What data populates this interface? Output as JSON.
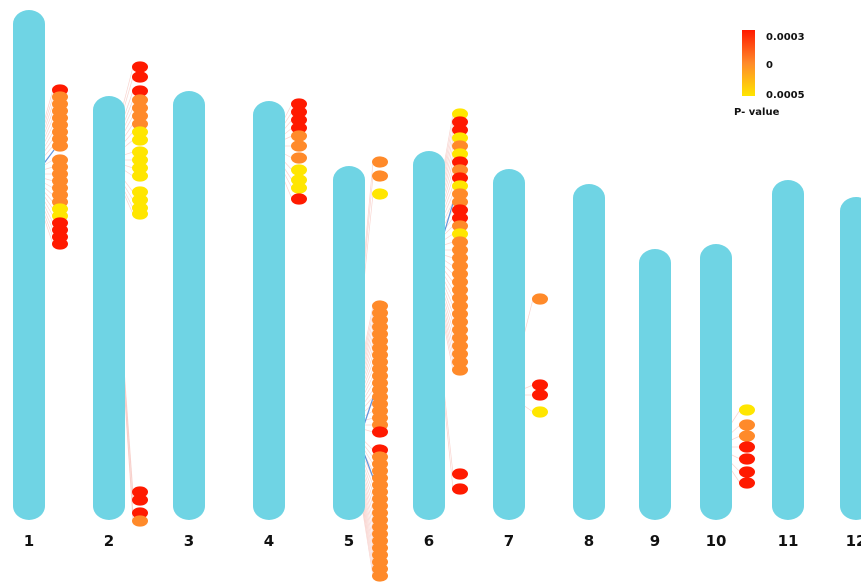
{
  "chart_data": {
    "type": "scatter",
    "title": "",
    "xlabel": "",
    "ylabel": "",
    "chromosome_color": "#6fd4e4",
    "chromosomes": [
      {
        "label": "1",
        "top": 10,
        "bottom": 520
      },
      {
        "label": "2",
        "top": 96,
        "bottom": 520
      },
      {
        "label": "3",
        "top": 91,
        "bottom": 520
      },
      {
        "label": "4",
        "top": 101,
        "bottom": 520
      },
      {
        "label": "5",
        "top": 166,
        "bottom": 520
      },
      {
        "label": "6",
        "top": 151,
        "bottom": 520
      },
      {
        "label": "7",
        "top": 169,
        "bottom": 520
      },
      {
        "label": "8",
        "top": 184,
        "bottom": 520
      },
      {
        "label": "9",
        "top": 249,
        "bottom": 520
      },
      {
        "label": "10",
        "top": 244,
        "bottom": 520
      },
      {
        "label": "11",
        "top": 180,
        "bottom": 520
      },
      {
        "label": "12",
        "top": 197,
        "bottom": 520
      }
    ],
    "p_value_scale": {
      "title": "P- value",
      "tick_labels": [
        "0.0003",
        "0",
        "0.0005"
      ],
      "color_high": "#ff1a00",
      "color_mid": "#ff8a2a",
      "color_low": "#ffe600"
    },
    "markers": [
      {
        "chromosome": "1",
        "positions": [
          90,
          97,
          104,
          111,
          118,
          125,
          132,
          139,
          146,
          160,
          167,
          174,
          181,
          188,
          195,
          202,
          209,
          216,
          223,
          230,
          237,
          244
        ],
        "colors": [
          "red",
          "orange",
          "orange",
          "orange",
          "orange",
          "orange",
          "orange",
          "orange",
          "orange",
          "orange",
          "orange",
          "orange",
          "orange",
          "orange",
          "orange",
          "orange",
          "yellow",
          "yellow",
          "red",
          "red",
          "red",
          "red"
        ]
      },
      {
        "chromosome": "2",
        "positions": [
          67,
          77,
          91,
          100,
          108,
          116,
          124,
          132,
          140,
          152,
          160,
          168,
          176,
          192,
          200,
          208,
          214,
          492,
          500,
          513,
          521
        ],
        "colors": [
          "red",
          "red",
          "red",
          "orange",
          "orange",
          "orange",
          "orange",
          "yellow",
          "yellow",
          "yellow",
          "yellow",
          "yellow",
          "yellow",
          "yellow",
          "yellow",
          "yellow",
          "yellow",
          "red",
          "red",
          "red",
          "orange"
        ]
      },
      {
        "chromosome": "4",
        "positions": [
          104,
          112,
          120,
          128,
          136,
          146,
          158,
          170,
          180,
          188,
          199
        ],
        "colors": [
          "red",
          "red",
          "red",
          "red",
          "orange",
          "orange",
          "orange",
          "yellow",
          "yellow",
          "yellow",
          "red"
        ]
      },
      {
        "chromosome": "5",
        "positions": [
          162,
          176,
          194,
          306,
          313,
          320,
          327,
          334,
          341,
          348,
          355,
          362,
          369,
          376,
          383,
          390,
          397,
          404,
          411,
          418,
          425,
          432,
          450,
          457,
          464,
          471,
          478,
          485,
          492,
          499,
          506,
          513,
          520,
          527,
          534,
          541,
          548,
          555,
          562,
          569,
          576
        ],
        "colors": [
          "orange",
          "orange",
          "yellow",
          "orange",
          "orange",
          "orange",
          "orange",
          "orange",
          "orange",
          "orange",
          "orange",
          "orange",
          "orange",
          "orange",
          "orange",
          "orange",
          "orange",
          "orange",
          "orange",
          "orange",
          "orange",
          "red",
          "red",
          "orange",
          "orange",
          "orange",
          "orange",
          "orange",
          "orange",
          "orange",
          "orange",
          "orange",
          "orange",
          "orange",
          "orange",
          "orange",
          "orange",
          "orange",
          "orange",
          "orange",
          "orange"
        ]
      },
      {
        "chromosome": "6",
        "positions": [
          114,
          122,
          130,
          138,
          146,
          154,
          162,
          170,
          178,
          186,
          194,
          202,
          210,
          218,
          226,
          234,
          242,
          250,
          258,
          266,
          274,
          282,
          290,
          298,
          306,
          314,
          322,
          330,
          338,
          346,
          354,
          362,
          370,
          474,
          489
        ],
        "colors": [
          "yellow",
          "red",
          "red",
          "yellow",
          "orange",
          "yellow",
          "red",
          "orange",
          "red",
          "yellow",
          "orange",
          "orange",
          "red",
          "red",
          "orange",
          "yellow",
          "orange",
          "orange",
          "orange",
          "orange",
          "orange",
          "orange",
          "orange",
          "orange",
          "orange",
          "orange",
          "orange",
          "orange",
          "orange",
          "orange",
          "orange",
          "orange",
          "orange",
          "red",
          "red"
        ]
      },
      {
        "chromosome": "7",
        "positions": [
          299,
          385,
          395,
          412
        ],
        "colors": [
          "orange",
          "red",
          "red",
          "yellow"
        ]
      },
      {
        "chromosome": "10",
        "positions": [
          410,
          425,
          436,
          447,
          459,
          472,
          483
        ],
        "colors": [
          "yellow",
          "orange",
          "orange",
          "red",
          "red",
          "red",
          "red"
        ]
      }
    ]
  }
}
